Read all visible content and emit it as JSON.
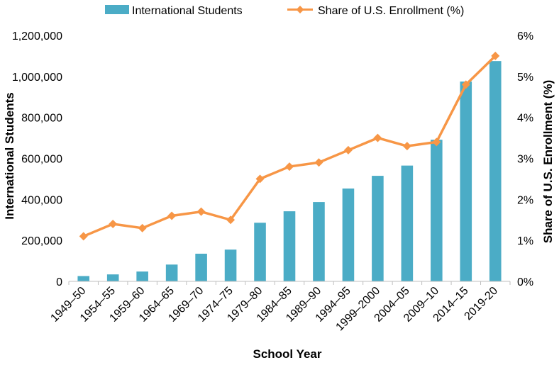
{
  "chart_data": {
    "type": "bar",
    "categories": [
      "1949–50",
      "1954–55",
      "1959–60",
      "1964–65",
      "1969–70",
      "1974–75",
      "1979–80",
      "1984–85",
      "1989–90",
      "1994–95",
      "1999–2000",
      "2004–05",
      "2009–10",
      "2014–15",
      "2019-20"
    ],
    "series": [
      {
        "name": "International Students",
        "type": "bar",
        "axis": "left",
        "color": "#4bacc6",
        "values": [
          26000,
          34000,
          48000,
          82000,
          135000,
          155000,
          286000,
          342000,
          387000,
          453000,
          515000,
          565000,
          691000,
          975000,
          1075000
        ]
      },
      {
        "name": "Share of U.S. Enrollment (%)",
        "type": "line",
        "axis": "right",
        "color": "#f79646",
        "marker": "diamond",
        "values": [
          1.1,
          1.4,
          1.3,
          1.6,
          1.7,
          1.5,
          2.5,
          2.8,
          2.9,
          3.2,
          3.5,
          3.3,
          3.4,
          4.8,
          5.5
        ]
      }
    ],
    "title": "",
    "xlabel": "School Year",
    "ylabel": "International Students",
    "y2label": "Share of U.S. Enrollment (%)",
    "ylim": [
      0,
      1200000
    ],
    "y2lim": [
      0,
      6
    ],
    "yticks": [
      "0",
      "200,000",
      "400,000",
      "600,000",
      "800,000",
      "1,000,000",
      "1,200,000"
    ],
    "y2ticks": [
      "0%",
      "1%",
      "2%",
      "3%",
      "4%",
      "5%",
      "6%"
    ],
    "legend_position": "top",
    "grid": false
  }
}
